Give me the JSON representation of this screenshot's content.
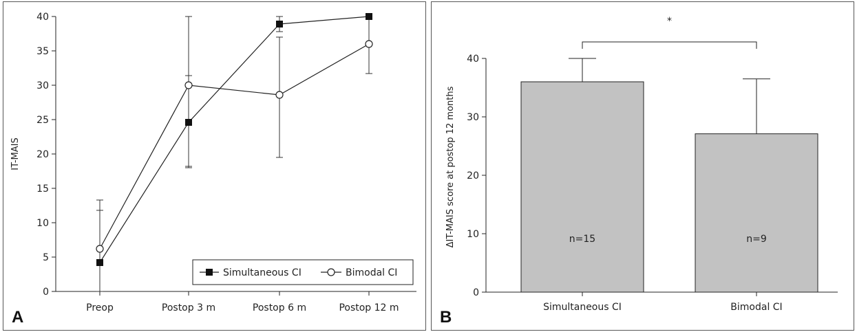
{
  "chart_data": [
    {
      "panel": "A",
      "type": "line",
      "ylabel": "IT-MAIS",
      "ylim": [
        0,
        40
      ],
      "yticks": [
        0,
        5,
        10,
        15,
        20,
        25,
        30,
        35,
        40
      ],
      "categories": [
        "Preop",
        "Postop 3 m",
        "Postop 6 m",
        "Postop 12 m"
      ],
      "grid": false,
      "legend_position": "bottom-right",
      "series": [
        {
          "name": "Simultaneous CI",
          "marker": "filled-square",
          "values": [
            4.2,
            24.6,
            38.9,
            40.0
          ],
          "error_upper": [
            11.8,
            40.0,
            40.0,
            40.0
          ],
          "error_lower": [
            0.0,
            18.0,
            37.8,
            40.0
          ]
        },
        {
          "name": "Bimodal CI",
          "marker": "open-circle",
          "values": [
            6.2,
            30.0,
            28.6,
            36.0
          ],
          "error_upper": [
            13.3,
            31.4,
            37.0,
            40.0
          ],
          "error_lower": [
            0.0,
            18.2,
            19.5,
            31.7
          ]
        }
      ]
    },
    {
      "panel": "B",
      "type": "bar",
      "ylabel": "ΔIT-MAIS score at postop 12 months",
      "ylim": [
        0,
        40
      ],
      "yticks": [
        0,
        10,
        20,
        30,
        40
      ],
      "categories": [
        "Simultaneous CI",
        "Bimodal CI"
      ],
      "values": [
        36.0,
        27.1
      ],
      "error_upper": [
        40.0,
        36.5
      ],
      "bar_labels": [
        "n=15",
        "n=9"
      ],
      "significance": "*",
      "bar_color": "#c2c2c2"
    }
  ]
}
